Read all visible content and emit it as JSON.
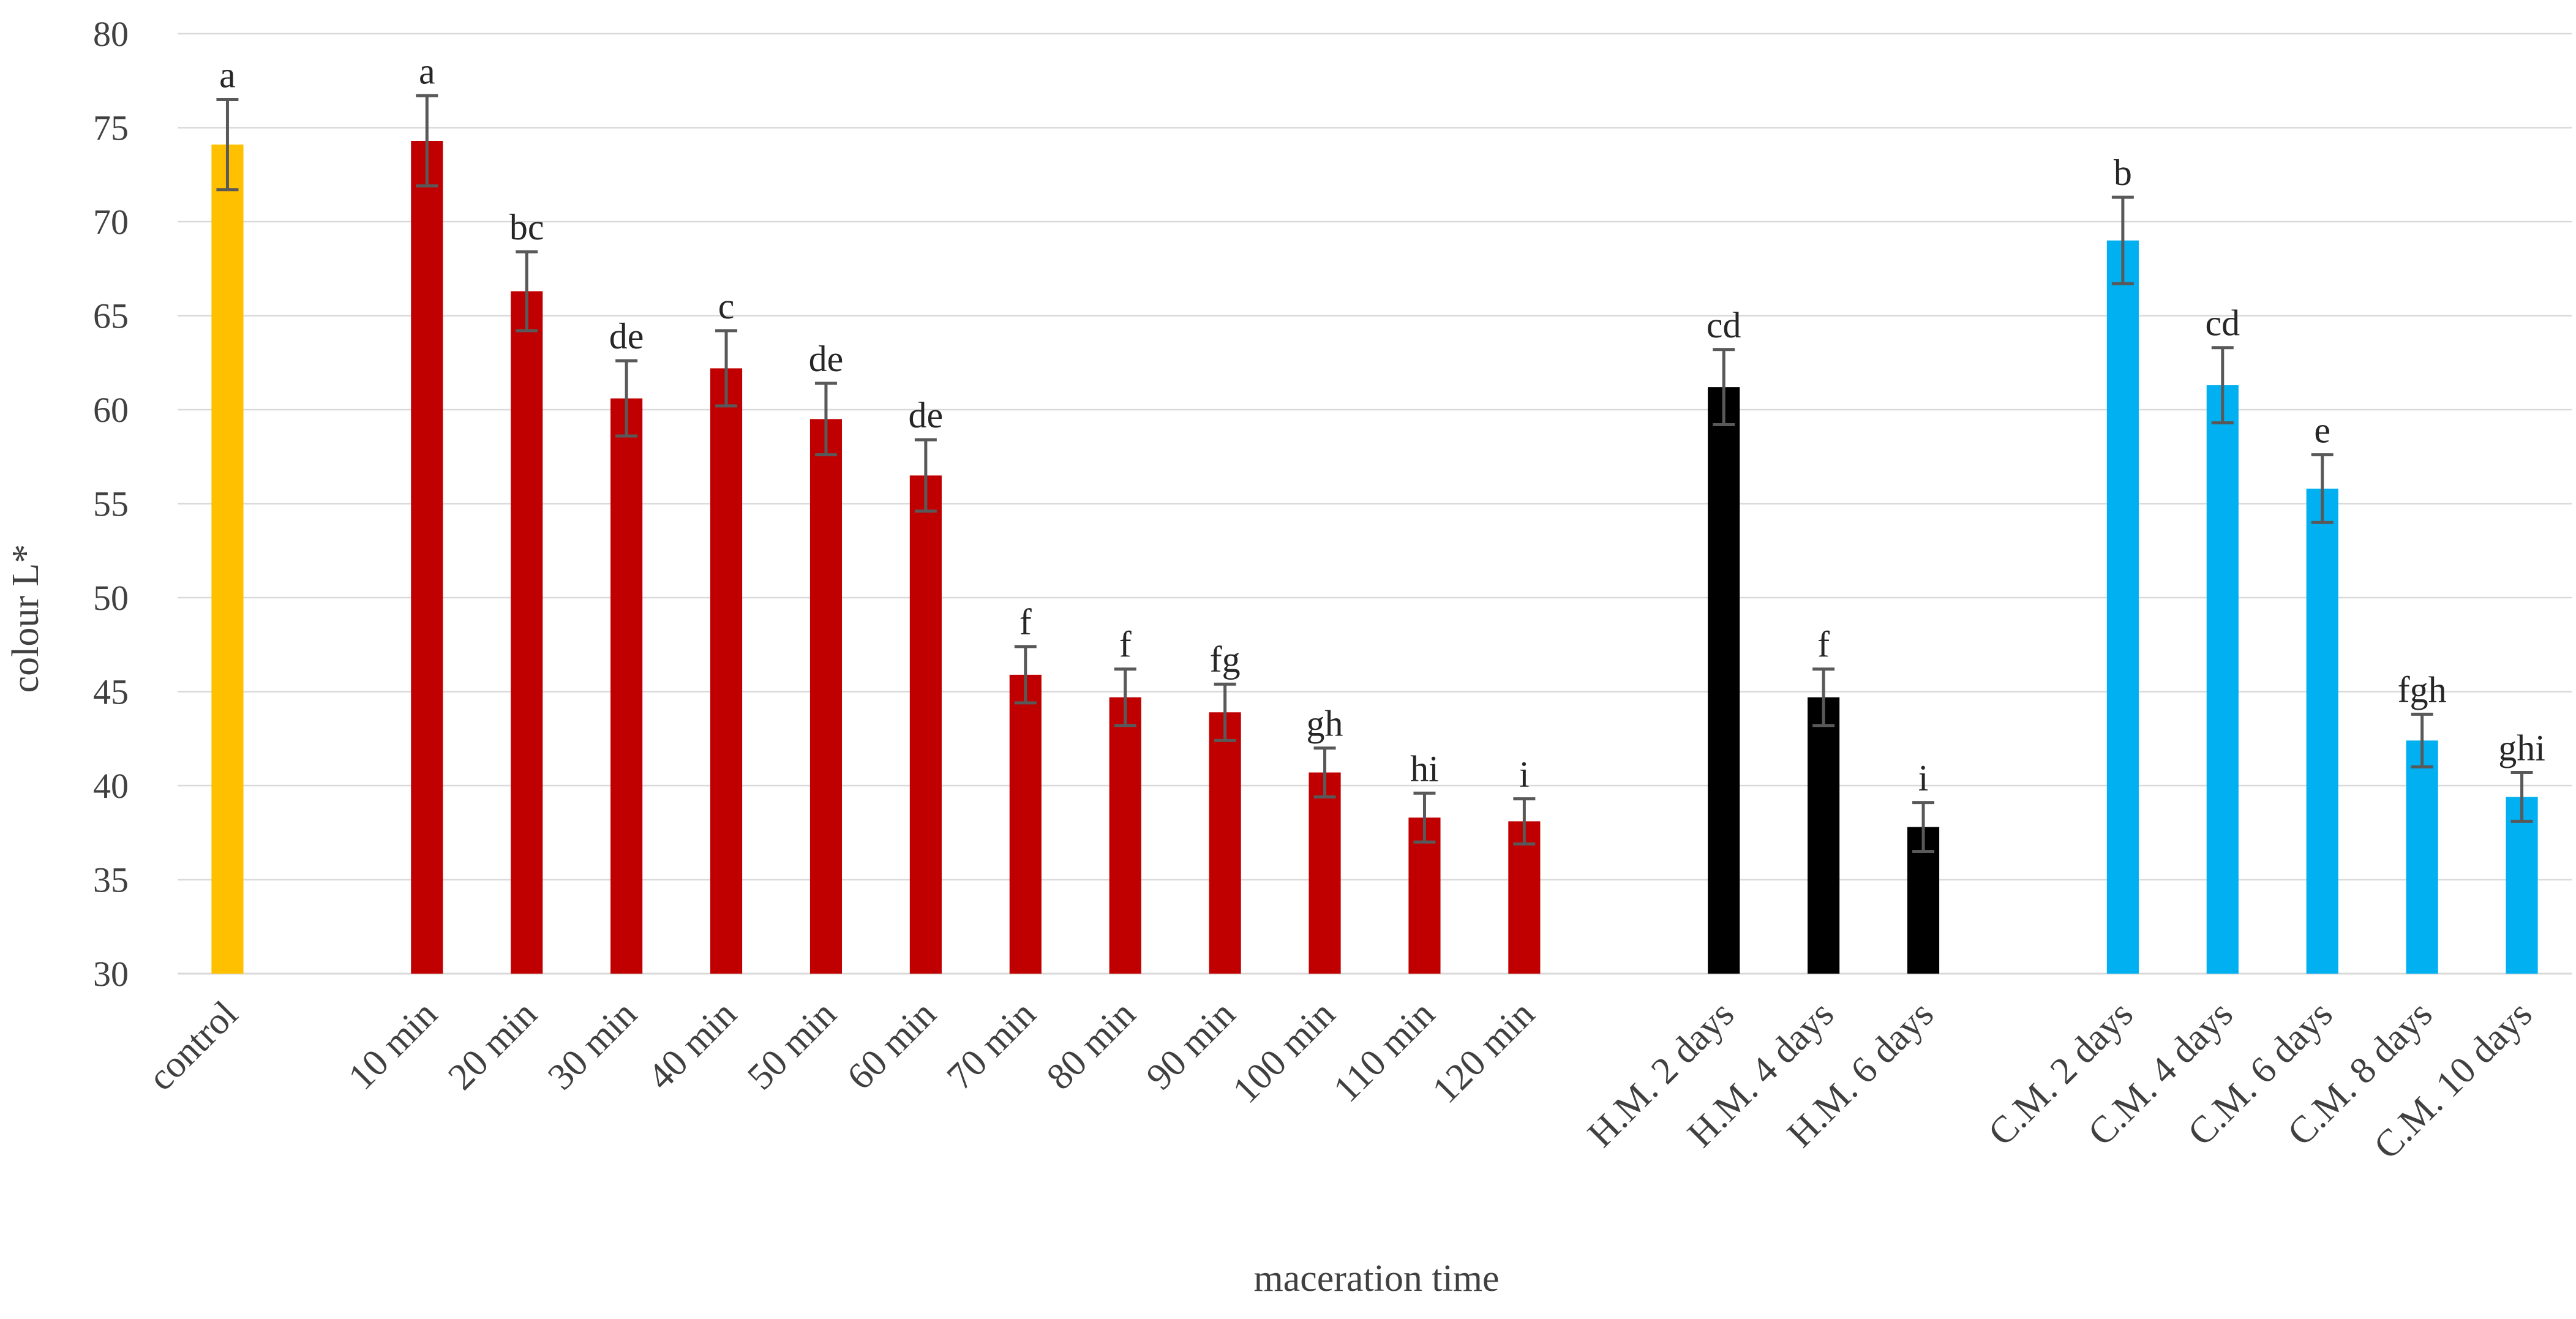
{
  "chart_data": {
    "type": "bar",
    "xlabel": "maceration time",
    "ylabel": "colour L*",
    "ylim": [
      30,
      80
    ],
    "yticks": [
      30,
      35,
      40,
      45,
      50,
      55,
      60,
      65,
      70,
      75,
      80
    ],
    "grid": true,
    "colors": {
      "control": "#FFC000",
      "red": "#C00000",
      "black": "#000000",
      "blue": "#00B0F0",
      "error_bar": "#595959",
      "grid": "#D9D9D9"
    },
    "bars": [
      {
        "category": "control",
        "value": 74.1,
        "error": 2.4,
        "letter": "a",
        "color": "control"
      },
      {
        "category": "",
        "value": null,
        "error": null,
        "letter": "",
        "color": ""
      },
      {
        "category": "10 min",
        "value": 74.3,
        "error": 2.4,
        "letter": "a",
        "color": "red"
      },
      {
        "category": "20 min",
        "value": 66.3,
        "error": 2.1,
        "letter": "bc",
        "color": "red"
      },
      {
        "category": "30 min",
        "value": 60.6,
        "error": 2.0,
        "letter": "de",
        "color": "red"
      },
      {
        "category": "40 min",
        "value": 62.2,
        "error": 2.0,
        "letter": "c",
        "color": "red"
      },
      {
        "category": "50 min",
        "value": 59.5,
        "error": 1.9,
        "letter": "de",
        "color": "red"
      },
      {
        "category": "60 min",
        "value": 56.5,
        "error": 1.9,
        "letter": "de",
        "color": "red"
      },
      {
        "category": "70 min",
        "value": 45.9,
        "error": 1.5,
        "letter": "f",
        "color": "red"
      },
      {
        "category": "80 min",
        "value": 44.7,
        "error": 1.5,
        "letter": "f",
        "color": "red"
      },
      {
        "category": "90 min",
        "value": 43.9,
        "error": 1.5,
        "letter": "fg",
        "color": "red"
      },
      {
        "category": "100 min",
        "value": 40.7,
        "error": 1.3,
        "letter": "gh",
        "color": "red"
      },
      {
        "category": "110 min",
        "value": 38.3,
        "error": 1.3,
        "letter": "hi",
        "color": "red"
      },
      {
        "category": "120 min",
        "value": 38.1,
        "error": 1.2,
        "letter": "i",
        "color": "red"
      },
      {
        "category": "",
        "value": null,
        "error": null,
        "letter": "",
        "color": ""
      },
      {
        "category": "H.M. 2 days",
        "value": 61.2,
        "error": 2.0,
        "letter": "cd",
        "color": "black"
      },
      {
        "category": "H.M. 4 days",
        "value": 44.7,
        "error": 1.5,
        "letter": "f",
        "color": "black"
      },
      {
        "category": "H.M. 6 days",
        "value": 37.8,
        "error": 1.3,
        "letter": "i",
        "color": "black"
      },
      {
        "category": "",
        "value": null,
        "error": null,
        "letter": "",
        "color": ""
      },
      {
        "category": "C.M. 2 days",
        "value": 69.0,
        "error": 2.3,
        "letter": "b",
        "color": "blue"
      },
      {
        "category": "C.M. 4 days",
        "value": 61.3,
        "error": 2.0,
        "letter": "cd",
        "color": "blue"
      },
      {
        "category": "C.M. 6 days",
        "value": 55.8,
        "error": 1.8,
        "letter": "e",
        "color": "blue"
      },
      {
        "category": "C.M. 8 days",
        "value": 42.4,
        "error": 1.4,
        "letter": "fgh",
        "color": "blue"
      },
      {
        "category": "C.M. 10 days",
        "value": 39.4,
        "error": 1.3,
        "letter": "ghi",
        "color": "blue"
      }
    ]
  }
}
